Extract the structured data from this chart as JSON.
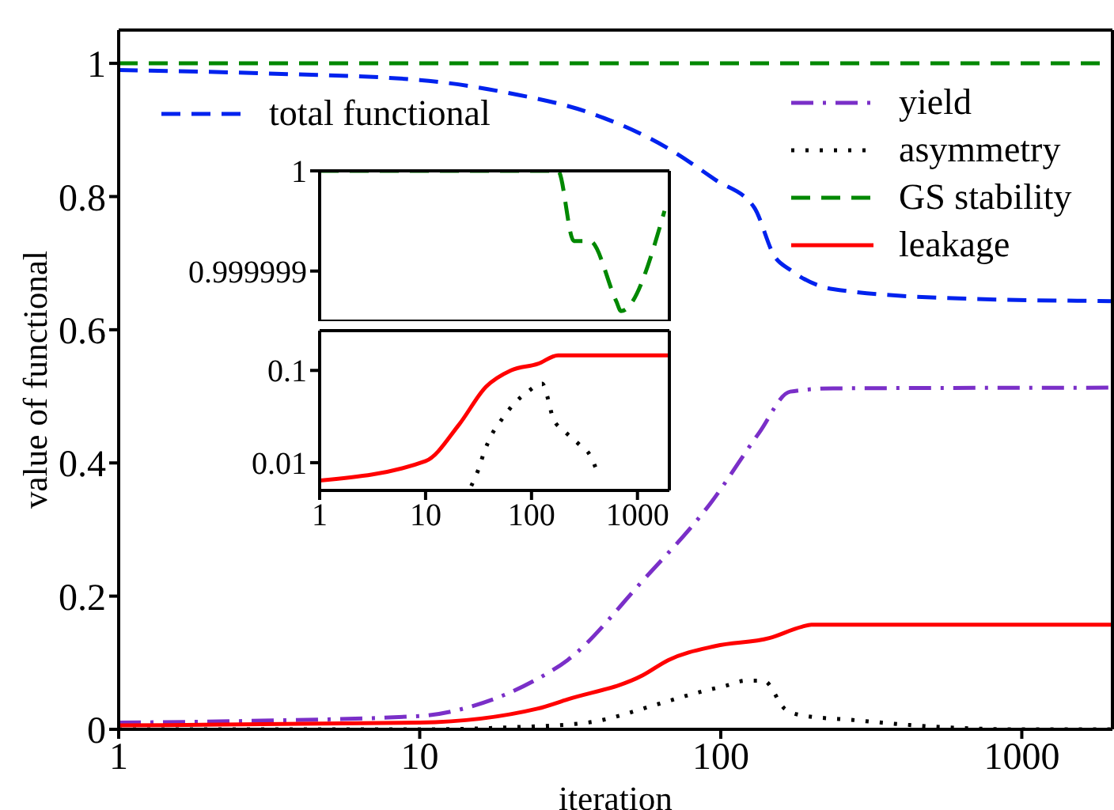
{
  "chart_data": [
    {
      "type": "line",
      "xlabel": "iteration",
      "ylabel": "value of functional",
      "log": "x",
      "xlim": [
        1,
        2000
      ],
      "xticks": [
        1,
        10,
        100,
        1000
      ],
      "ylim": [
        0,
        1.05
      ],
      "yticks": [
        0,
        0.2,
        0.4,
        0.6,
        0.8,
        1
      ],
      "legend": "top",
      "series": [
        {
          "name": "total functional",
          "color": "#0022ee",
          "line_style": "dashed",
          "x": [
            1,
            3,
            10,
            20,
            36,
            67,
            96,
            129,
            151,
            170,
            236,
            620,
            2000
          ],
          "values": [
            0.99,
            0.985,
            0.975,
            0.955,
            0.927,
            0.872,
            0.825,
            0.784,
            0.71,
            0.69,
            0.661,
            0.647,
            0.643
          ]
        },
        {
          "name": "yield",
          "color": "#7a2fc8",
          "line_style": "dashdot",
          "x": [
            1,
            3,
            10,
            15,
            24,
            31,
            55,
            93,
            134,
            170,
            236,
            2000
          ],
          "values": [
            0.01,
            0.013,
            0.02,
            0.035,
            0.073,
            0.104,
            0.223,
            0.341,
            0.445,
            0.507,
            0.512,
            0.513
          ]
        },
        {
          "name": "asymmetry",
          "color": "#000000",
          "line_style": "dotted",
          "x": [
            1,
            10,
            20,
            36,
            62,
            82,
            105,
            121,
            139,
            163,
            186,
            275,
            410,
            620,
            1000,
            2000
          ],
          "values": [
            0,
            0,
            0.003,
            0.01,
            0.038,
            0.054,
            0.066,
            0.073,
            0.073,
            0.031,
            0.021,
            0.014,
            0.007,
            0.002,
            0,
            0
          ]
        },
        {
          "name": "GS stability",
          "color": "#008800",
          "line_style": "dashed",
          "x": [
            1,
            2000
          ],
          "values": [
            1,
            1
          ]
        },
        {
          "name": "leakage",
          "color": "#ff0000",
          "line_style": "solid",
          "x": [
            1,
            10,
            24.6,
            31,
            55,
            67,
            96,
            145,
            186,
            200,
            2000
          ],
          "values": [
            0.006,
            0.01,
            0.031,
            0.045,
            0.081,
            0.104,
            0.125,
            0.137,
            0.154,
            0.157,
            0.157
          ]
        }
      ]
    },
    {
      "type": "line",
      "log": "x",
      "xlim": [
        1,
        2000
      ],
      "xticks": [
        1,
        10,
        100,
        1000
      ],
      "ylim": [
        0.9999985,
        1
      ],
      "yticks": [
        0.999999,
        1
      ],
      "tick_labels": "y",
      "series": [
        {
          "color": "#008800",
          "line_style": "dashed",
          "x": [
            1,
            126,
            178,
            251,
            355,
            630,
            700,
            1800
          ],
          "values": [
            1,
            1,
            1,
            0.9999993,
            0.9999993,
            0.9999987,
            0.9999986,
            0.9999996
          ]
        }
      ]
    },
    {
      "type": "line",
      "log": "xy",
      "xlim": [
        1,
        2000
      ],
      "xticks": [
        1,
        10,
        100,
        1000
      ],
      "ylim": [
        0.005,
        0.27
      ],
      "yticks": [
        0.01,
        0.1
      ],
      "series": [
        {
          "color": "#ff0000",
          "line_style": "solid",
          "x": [
            1,
            10,
            20.6,
            37,
            64,
            115,
            178,
            2000
          ],
          "values": [
            0.0064,
            0.0104,
            0.0257,
            0.066,
            0.1,
            0.118,
            0.146,
            0.146
          ]
        },
        {
          "color": "#000000",
          "line_style": "dotted",
          "x": [
            27,
            31.6,
            35.7,
            42,
            53,
            69,
            91,
            126,
            144,
            160,
            204,
            278,
            360,
            420
          ],
          "values": [
            0.0056,
            0.0085,
            0.013,
            0.02,
            0.03,
            0.044,
            0.058,
            0.072,
            0.048,
            0.03,
            0.022,
            0.016,
            0.0118,
            0.0078
          ]
        }
      ]
    }
  ]
}
